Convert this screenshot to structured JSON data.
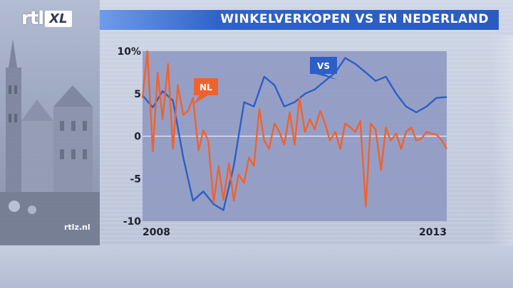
{
  "brand": {
    "logo_text": "rtl",
    "logo_badge": "XL",
    "site": "rtlz.nl"
  },
  "colors": {
    "vs": "#2d5ec6",
    "nl": "#f0622d",
    "title_bar": "#2a5bc0",
    "plot_bg": "#929cc4"
  },
  "chart_data": {
    "type": "line",
    "title": "WINKELVERKOPEN VS EN NEDERLAND",
    "ylim": [
      -10,
      10
    ],
    "y_ticks": [
      10,
      5,
      0,
      -5,
      -10
    ],
    "y_tick_labels": [
      "10%",
      "5",
      "0",
      "-5",
      "-10"
    ],
    "x_range": [
      2008.0,
      2013.0
    ],
    "x_tick_labels": [
      {
        "x": 2008.0,
        "label": "2008"
      },
      {
        "x": 2013.0,
        "label": "2013"
      }
    ],
    "grid": false,
    "series": [
      {
        "name": "VS",
        "x": [
          2008.0,
          2008.17,
          2008.33,
          2008.5,
          2008.67,
          2008.83,
          2009.0,
          2009.17,
          2009.33,
          2009.5,
          2009.67,
          2009.83,
          2010.0,
          2010.17,
          2010.33,
          2010.5,
          2010.67,
          2010.83,
          2011.0,
          2011.17,
          2011.33,
          2011.5,
          2011.67,
          2011.83,
          2012.0,
          2012.17,
          2012.33,
          2012.5,
          2012.67,
          2012.83,
          2013.0
        ],
        "values": [
          4.8,
          3.4,
          5.3,
          4.2,
          -2.5,
          -7.6,
          -6.5,
          -8.0,
          -8.7,
          -3.5,
          4.0,
          3.5,
          7.0,
          6.0,
          3.5,
          4.0,
          5.0,
          5.5,
          6.5,
          7.5,
          9.2,
          8.5,
          7.5,
          6.5,
          7.0,
          5.0,
          3.5,
          2.8,
          3.5,
          4.5,
          4.6
        ]
      },
      {
        "name": "NL",
        "x": [
          2008.0,
          2008.08,
          2008.17,
          2008.25,
          2008.33,
          2008.42,
          2008.5,
          2008.58,
          2008.67,
          2008.75,
          2008.83,
          2008.92,
          2009.0,
          2009.08,
          2009.17,
          2009.25,
          2009.33,
          2009.42,
          2009.5,
          2009.58,
          2009.67,
          2009.75,
          2009.83,
          2009.92,
          2010.0,
          2010.08,
          2010.17,
          2010.25,
          2010.33,
          2010.42,
          2010.5,
          2010.58,
          2010.67,
          2010.75,
          2010.83,
          2010.92,
          2011.0,
          2011.08,
          2011.17,
          2011.25,
          2011.33,
          2011.42,
          2011.5,
          2011.58,
          2011.67,
          2011.75,
          2011.83,
          2011.92,
          2012.0,
          2012.08,
          2012.17,
          2012.25,
          2012.33,
          2012.42,
          2012.5,
          2012.58,
          2012.67,
          2012.75,
          2012.83,
          2012.92,
          2013.0
        ],
        "values": [
          4.5,
          10.0,
          -1.8,
          7.5,
          2.0,
          8.5,
          -1.5,
          6.0,
          2.5,
          3.0,
          4.5,
          -1.7,
          0.7,
          -0.5,
          -7.8,
          -3.5,
          -7.5,
          -3.2,
          -7.6,
          -4.5,
          -5.5,
          -2.5,
          -3.5,
          3.2,
          -0.5,
          -1.5,
          1.5,
          0.5,
          -1.0,
          2.8,
          -1.0,
          4.5,
          0.5,
          2.0,
          0.8,
          3.0,
          1.5,
          -0.5,
          0.5,
          -1.5,
          1.5,
          1.0,
          0.5,
          1.8,
          -8.3,
          1.5,
          0.8,
          -4.0,
          1.0,
          -0.5,
          0.3,
          -1.5,
          0.5,
          1.0,
          -0.5,
          -0.3,
          0.5,
          0.3,
          0.2,
          -0.5,
          -1.5
        ]
      }
    ]
  }
}
